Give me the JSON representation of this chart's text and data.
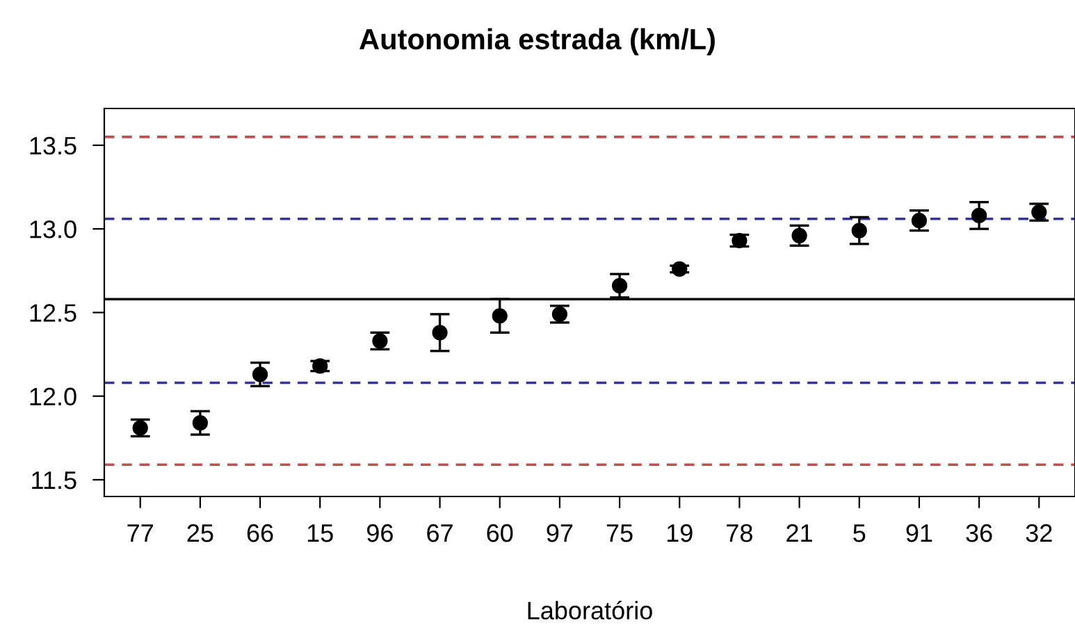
{
  "chart_data": {
    "type": "scatter",
    "title": "Autonomia estrada (km/L)",
    "xlabel": "Laboratório",
    "categories": [
      "77",
      "25",
      "66",
      "15",
      "96",
      "67",
      "60",
      "97",
      "75",
      "19",
      "78",
      "21",
      "5",
      "91",
      "36",
      "32"
    ],
    "series": [
      {
        "color": "#000000",
        "values": [
          11.81,
          11.84,
          12.13,
          12.18,
          12.33,
          12.38,
          12.48,
          12.49,
          12.66,
          12.76,
          12.93,
          12.96,
          12.99,
          13.05,
          13.08,
          13.1
        ],
        "errors": [
          0.05,
          0.07,
          0.07,
          0.03,
          0.05,
          0.11,
          0.1,
          0.05,
          0.07,
          0.02,
          0.035,
          0.06,
          0.08,
          0.06,
          0.08,
          0.05
        ]
      }
    ],
    "marker": "circle",
    "grid": false,
    "legend": false,
    "ylim": [
      11.4,
      13.72
    ],
    "yticks": [
      {
        "value": 11.5,
        "label": "11.5"
      },
      {
        "value": 12.0,
        "label": "12.0"
      },
      {
        "value": 12.5,
        "label": "12.5"
      },
      {
        "value": 13.0,
        "label": "13.0"
      },
      {
        "value": 13.5,
        "label": "13.5"
      }
    ],
    "ref_lines": [
      {
        "axis": "y",
        "value": 13.55,
        "color": "#c0504d",
        "line_style": "dashed"
      },
      {
        "axis": "y",
        "value": 13.06,
        "color": "#333399",
        "line_style": "dashed"
      },
      {
        "axis": "y",
        "value": 12.58,
        "color": "#000000",
        "line_style": "solid"
      },
      {
        "axis": "y",
        "value": 12.08,
        "color": "#333399",
        "line_style": "dashed"
      },
      {
        "axis": "y",
        "value": 11.59,
        "color": "#c0504d",
        "line_style": "dashed"
      }
    ]
  }
}
